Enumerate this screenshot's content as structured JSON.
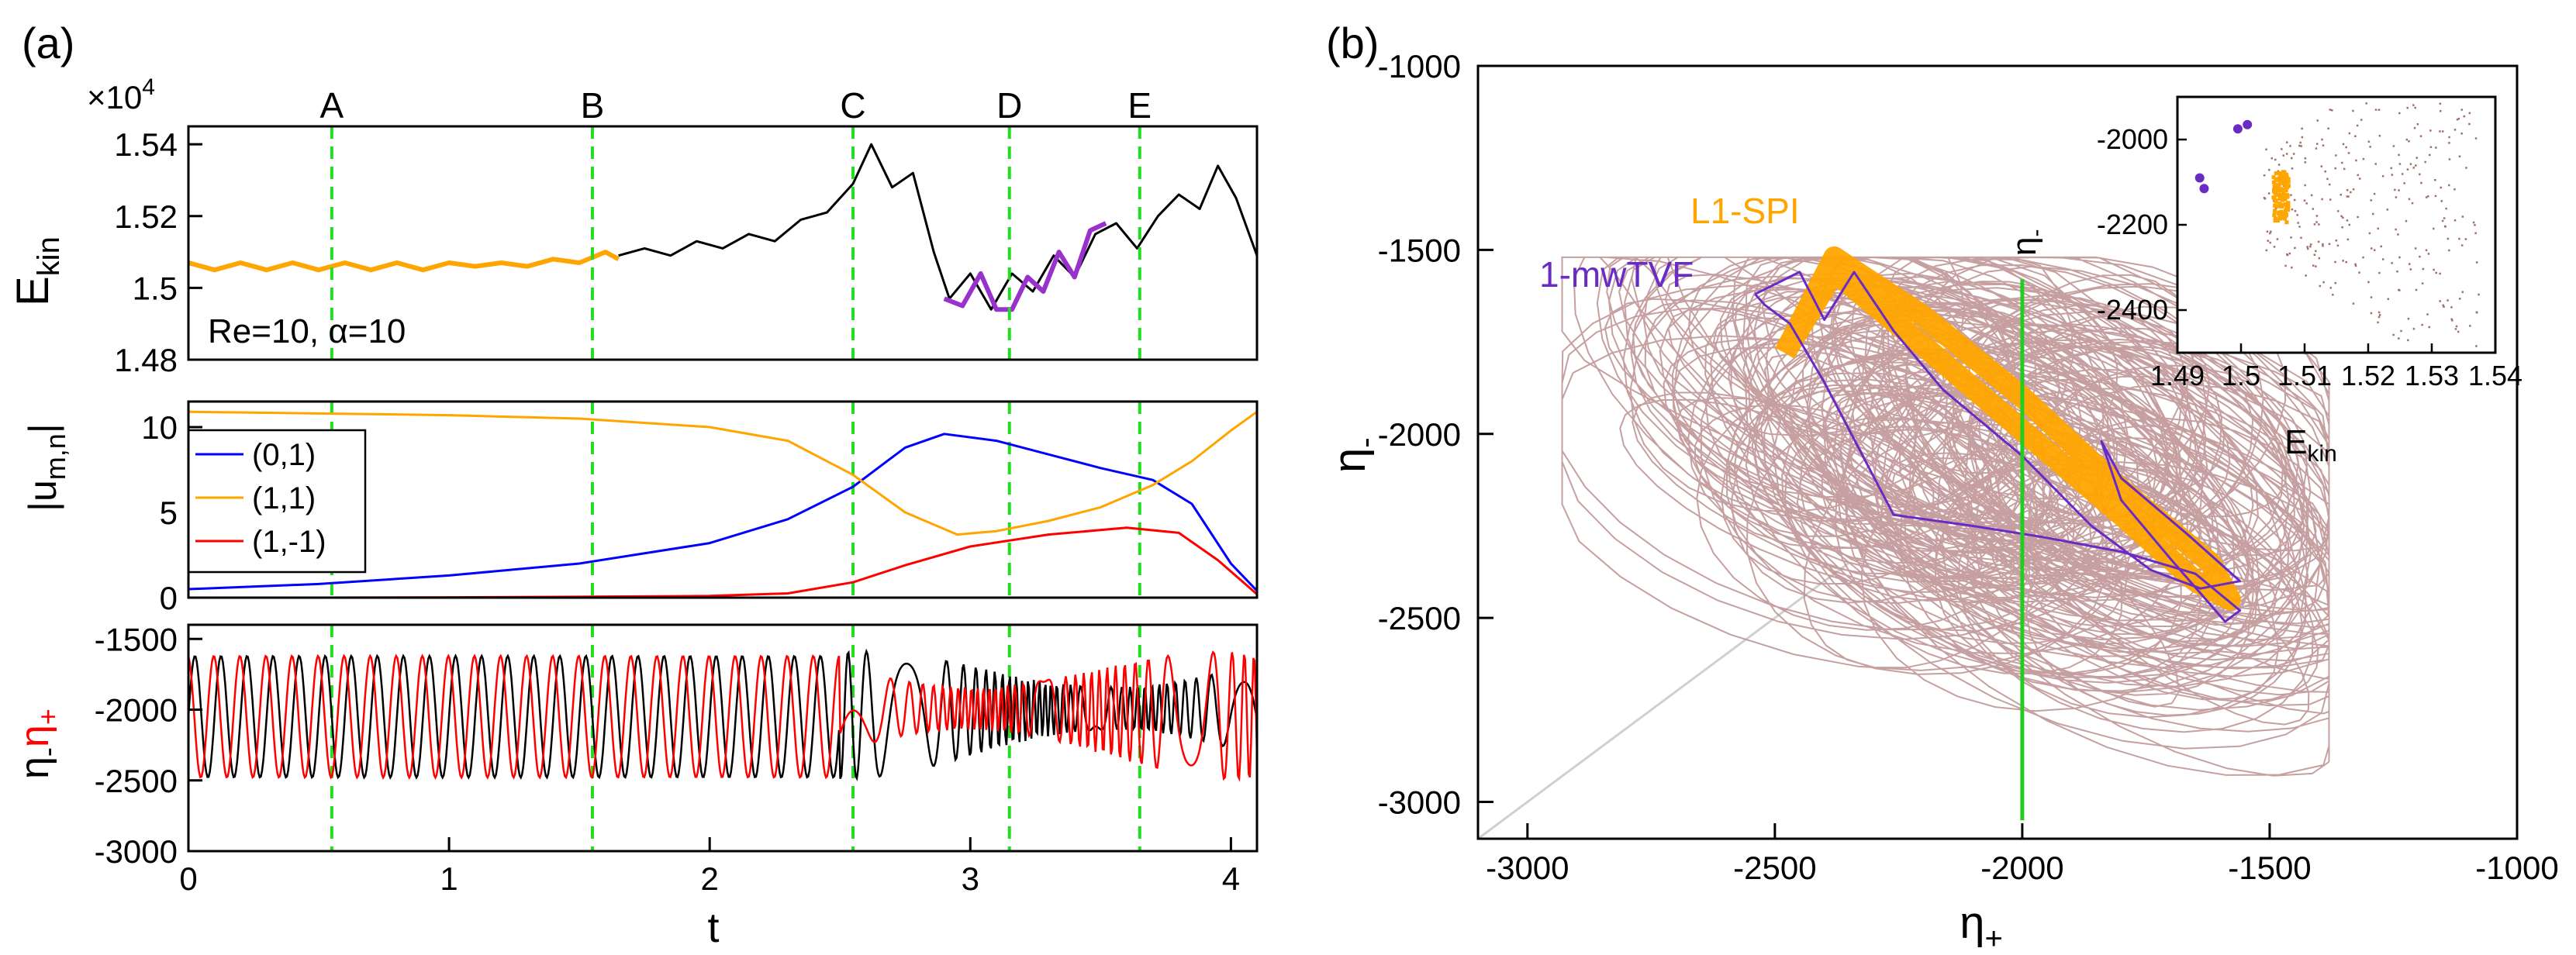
{
  "chart_data": [
    {
      "id": "a1",
      "type": "line",
      "panel_label": "(a)",
      "xlabel": "t",
      "ylabel_main": "E",
      "ylabel_sub": "kin",
      "multiplier": "×10",
      "multiplier_exp": "4",
      "annotation": "Re=10, α=10",
      "xlim": [
        0,
        4.1
      ],
      "ylim": [
        1.48,
        1.545
      ],
      "yticks": [
        1.48,
        1.5,
        1.52,
        1.54
      ],
      "ytick_labels": [
        "1.48",
        "1.5",
        "1.52",
        "1.54"
      ],
      "markers": [
        {
          "label": "A",
          "t": 0.55
        },
        {
          "label": "B",
          "t": 1.55
        },
        {
          "label": "C",
          "t": 2.55
        },
        {
          "label": "D",
          "t": 3.15
        },
        {
          "label": "E",
          "t": 3.65
        }
      ],
      "series": [
        {
          "name": "E_kin",
          "color": "#000000",
          "x": [
            1.65,
            1.75,
            1.85,
            1.95,
            2.05,
            2.15,
            2.25,
            2.35,
            2.45,
            2.55,
            2.62,
            2.7,
            2.78,
            2.86,
            2.92,
            3.0,
            3.08,
            3.16,
            3.24,
            3.32,
            3.4,
            3.48,
            3.56,
            3.64,
            3.72,
            3.8,
            3.88,
            3.95,
            4.02,
            4.1
          ],
          "values": [
            1.509,
            1.511,
            1.509,
            1.513,
            1.511,
            1.515,
            1.513,
            1.519,
            1.521,
            1.529,
            1.54,
            1.528,
            1.532,
            1.51,
            1.497,
            1.504,
            1.494,
            1.504,
            1.499,
            1.509,
            1.503,
            1.515,
            1.518,
            1.511,
            1.52,
            1.526,
            1.522,
            1.534,
            1.525,
            1.509
          ]
        },
        {
          "name": "L1-SPI segment",
          "color": "#FFA500",
          "x": [
            0,
            0.1,
            0.2,
            0.3,
            0.4,
            0.5,
            0.6,
            0.7,
            0.8,
            0.9,
            1.0,
            1.1,
            1.2,
            1.3,
            1.4,
            1.5,
            1.6,
            1.65
          ],
          "values": [
            1.507,
            1.505,
            1.507,
            1.505,
            1.507,
            1.505,
            1.507,
            1.505,
            1.507,
            1.505,
            1.507,
            1.506,
            1.507,
            1.506,
            1.508,
            1.507,
            1.51,
            1.508
          ]
        },
        {
          "name": "1-mwTVF segment",
          "color": "#9932CC",
          "x": [
            2.9,
            2.97,
            3.04,
            3.1,
            3.16,
            3.22,
            3.28,
            3.34,
            3.4,
            3.46,
            3.52
          ],
          "values": [
            1.497,
            1.495,
            1.504,
            1.494,
            1.494,
            1.503,
            1.499,
            1.51,
            1.503,
            1.516,
            1.518
          ]
        }
      ]
    },
    {
      "id": "a2",
      "type": "line",
      "ylabel_main": "|u",
      "ylabel_sub": "m,n",
      "ylabel_end": "|",
      "xlim": [
        0,
        4.1
      ],
      "ylim": [
        0,
        11.5
      ],
      "yticks": [
        0,
        5,
        10
      ],
      "ytick_labels": [
        "0",
        "5",
        "10"
      ],
      "series": [
        {
          "name": "(0,1)",
          "color": "#0000FF",
          "x": [
            0,
            0.5,
            1.0,
            1.5,
            2.0,
            2.3,
            2.55,
            2.75,
            2.9,
            3.1,
            3.3,
            3.5,
            3.7,
            3.85,
            4.0,
            4.1
          ],
          "values": [
            0.5,
            0.8,
            1.3,
            2.0,
            3.2,
            4.6,
            6.5,
            8.8,
            9.6,
            9.2,
            8.4,
            7.6,
            6.9,
            5.5,
            2.0,
            0.4
          ]
        },
        {
          "name": "(1,1)",
          "color": "#FFA500",
          "x": [
            0,
            0.5,
            1.0,
            1.5,
            2.0,
            2.3,
            2.55,
            2.75,
            2.95,
            3.1,
            3.3,
            3.5,
            3.7,
            3.85,
            4.0,
            4.1
          ],
          "values": [
            10.9,
            10.8,
            10.7,
            10.5,
            10.0,
            9.2,
            7.2,
            5.0,
            3.7,
            3.9,
            4.5,
            5.3,
            6.6,
            8.0,
            9.8,
            10.9
          ]
        },
        {
          "name": "(1,-1)",
          "color": "#FF0000",
          "x": [
            0,
            0.5,
            1.0,
            1.5,
            2.0,
            2.3,
            2.55,
            2.75,
            3.0,
            3.3,
            3.6,
            3.8,
            3.95,
            4.1
          ],
          "values": [
            0,
            0,
            0.02,
            0.05,
            0.1,
            0.25,
            0.9,
            1.9,
            3.0,
            3.7,
            4.1,
            3.8,
            2.2,
            0.2
          ]
        }
      ]
    },
    {
      "id": "a3",
      "type": "line",
      "ylabel_black": "η",
      "ylabel_black_sub": "-",
      "ylabel_red": "η",
      "ylabel_red_sub": "+",
      "xlim": [
        0,
        4.1
      ],
      "ylim": [
        -3000,
        -1400
      ],
      "yticks": [
        -3000,
        -2500,
        -2000,
        -1500
      ],
      "ytick_labels": [
        "-3000",
        "-2500",
        "-2000",
        "-1500"
      ],
      "xticks": [
        0,
        1,
        2,
        3,
        4
      ],
      "xtick_labels": [
        "0",
        "1",
        "2",
        "3",
        "4"
      ],
      "series": [
        {
          "name": "η-",
          "color": "#000000",
          "center": -2050,
          "amplitude": 430,
          "period": 0.1,
          "description": "regular oscillation until t≈2.5, then irregular"
        },
        {
          "name": "η+",
          "color": "#FF0000",
          "center": -2050,
          "amplitude": 430,
          "period": 0.1,
          "description": "regular oscillation until t≈2.5, then irregular"
        }
      ]
    },
    {
      "id": "b",
      "type": "line",
      "panel_label": "(b)",
      "xlabel_main": "η",
      "xlabel_sub": "+",
      "ylabel_main": "η",
      "ylabel_sub": "-",
      "xlim": [
        -3100,
        -1000
      ],
      "ylim": [
        -3100,
        -1000
      ],
      "xticks": [
        -3000,
        -2500,
        -2000,
        -1500,
        -1000
      ],
      "xtick_labels": [
        "-3000",
        "-2500",
        "-2000",
        "-1500",
        "-1000"
      ],
      "yticks": [
        -3000,
        -2500,
        -2000,
        -1500,
        -1000
      ],
      "ytick_labels": [
        "-3000",
        "-2500",
        "-2000",
        "-1500",
        "-1000"
      ],
      "section_line_x": -2000,
      "diagonal": [
        [
          -3100,
          -3100
        ],
        [
          -2350,
          -2350
        ]
      ],
      "chaotic_color": "#BC8F8F",
      "series": [
        {
          "name": "L1-SPI",
          "color": "#FFA500",
          "x": [
            -2480,
            -2380,
            -2200,
            -2000,
            -1800,
            -1650,
            -1580,
            -1620,
            -1800,
            -2000,
            -2200,
            -2380,
            -2480
          ],
          "values": [
            -1780,
            -1560,
            -1760,
            -1990,
            -2220,
            -2400,
            -2450,
            -2350,
            -2150,
            -1900,
            -1680,
            -1520,
            -1780
          ]
        },
        {
          "name": "1-mwTVF",
          "color": "#6A2BC4",
          "x": [
            -2540,
            -2450,
            -2400,
            -2340,
            -2260,
            -2160,
            -2000,
            -1860,
            -1740,
            -1640,
            -1560,
            -1660,
            -1800,
            -1840,
            -1800,
            -1700,
            -1590,
            -1560,
            -1650,
            -1800,
            -1960,
            -2100,
            -2260,
            -2400,
            -2470,
            -2520,
            -2540
          ],
          "values": [
            -1620,
            -1560,
            -1690,
            -1560,
            -1720,
            -1880,
            -2060,
            -2250,
            -2370,
            -2420,
            -2400,
            -2280,
            -2120,
            -2020,
            -2180,
            -2340,
            -2510,
            -2480,
            -2380,
            -2320,
            -2280,
            -2250,
            -2220,
            -1860,
            -1700,
            -1650,
            -1620
          ]
        }
      ],
      "legend_labels": [
        {
          "text": "L1-SPI",
          "color": "#FFA500"
        },
        {
          "text": "1-mwTVF",
          "color": "#6A2BC4"
        }
      ]
    },
    {
      "id": "b-inset",
      "type": "scatter",
      "xlabel_main": "E",
      "xlabel_sub": "kin",
      "ylabel_main": "η",
      "ylabel_sub": "-",
      "xlim": [
        1.49,
        1.54
      ],
      "ylim": [
        -2500,
        -1900
      ],
      "xticks": [
        1.49,
        1.5,
        1.51,
        1.52,
        1.53,
        1.54
      ],
      "xtick_labels": [
        "1.49",
        "1.5",
        "1.51",
        "1.52",
        "1.53",
        "1.54"
      ],
      "yticks": [
        -2400,
        -2200,
        -2000
      ],
      "ytick_labels": [
        "-2400",
        "-2200",
        "-2000"
      ],
      "purple_points": {
        "color": "#6A2BC4",
        "x": [
          1.4935,
          1.4942,
          1.4995,
          1.501
        ],
        "y": [
          -2090,
          -2115,
          -1975,
          -1965
        ]
      },
      "orange_cluster": {
        "color": "#FFA500",
        "x_center": 1.506,
        "y_center": -2130,
        "x_spread": 0.0012,
        "y_spread": 60
      },
      "scatter_color": "#A0706A"
    }
  ]
}
